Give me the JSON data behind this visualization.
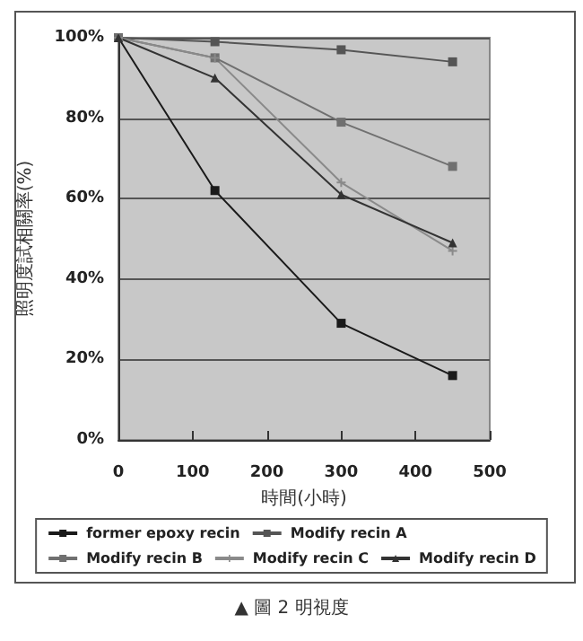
{
  "chart_data": {
    "type": "line",
    "xlabel": "時間(小時)",
    "ylabel": "照明度試相關率(%)",
    "annotations": [
      "▲ 圖 2 明視度"
    ],
    "x": [
      0,
      130,
      300,
      450
    ],
    "series": [
      {
        "name": "former epoxy recin",
        "color": "#1a1a1a",
        "marker": "square",
        "values": [
          100,
          62,
          29,
          16
        ]
      },
      {
        "name": "Modify recin A",
        "color": "#555555",
        "marker": "square",
        "values": [
          100,
          99,
          97,
          94
        ]
      },
      {
        "name": "Modify recin B",
        "color": "#707070",
        "marker": "square",
        "values": [
          100,
          95,
          79,
          68
        ]
      },
      {
        "name": "Modify recin C",
        "color": "#8a8a8a",
        "marker": "cross",
        "values": [
          100,
          95,
          64,
          47
        ]
      },
      {
        "name": "Modify recin D",
        "color": "#333333",
        "marker": "triangle",
        "values": [
          100,
          90,
          61,
          49
        ]
      }
    ],
    "xlim": [
      0,
      500
    ],
    "xticks": [
      0,
      100,
      200,
      300,
      400,
      500
    ],
    "ylim": [
      0,
      100
    ],
    "yticks": [
      {
        "value": 0,
        "label": "0%"
      },
      {
        "value": 20,
        "label": "20%"
      },
      {
        "value": 40,
        "label": "40%"
      },
      {
        "value": 60,
        "label": "60%"
      },
      {
        "value": 80,
        "label": "80%"
      },
      {
        "value": 100,
        "label": "100%"
      }
    ],
    "grid": "y",
    "legend": "bottom"
  }
}
